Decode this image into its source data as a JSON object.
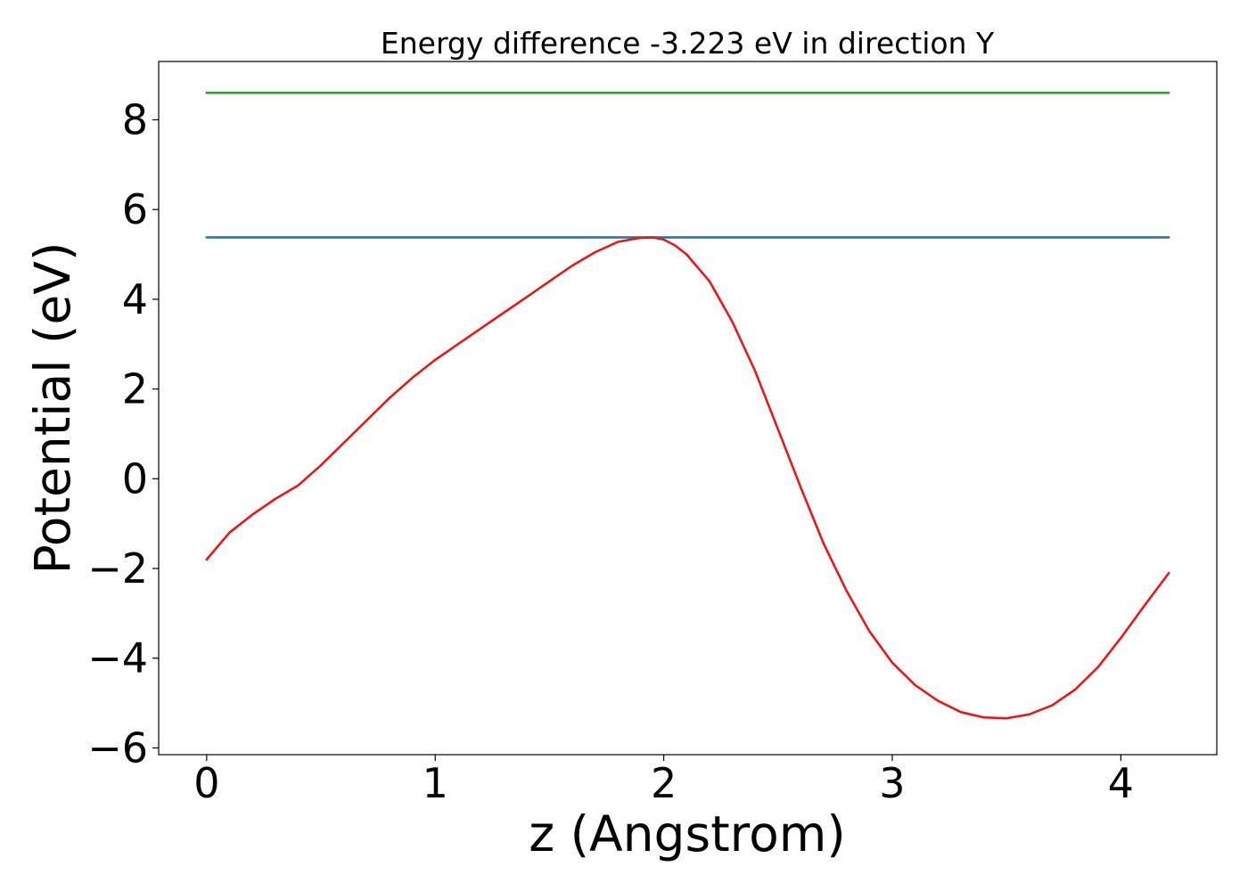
{
  "chart_data": {
    "type": "line",
    "title": "Energy difference -3.223 eV in direction Y",
    "xlabel": "z (Angstrom)",
    "ylabel": "Potential (eV)",
    "xlim": [
      -0.21,
      4.42
    ],
    "ylim": [
      -6.15,
      9.3
    ],
    "xticks": [
      0,
      1,
      2,
      3,
      4
    ],
    "yticks": [
      -6,
      -4,
      -2,
      0,
      2,
      4,
      6,
      8
    ],
    "xtick_labels": [
      "0",
      "1",
      "2",
      "3",
      "4"
    ],
    "ytick_labels": [
      "−6",
      "−4",
      "−2",
      "0",
      "2",
      "4",
      "6",
      "8"
    ],
    "grid": false,
    "series": [
      {
        "color": "#2ca02c",
        "x": [
          0,
          4.21
        ],
        "y": [
          8.6,
          8.6
        ]
      },
      {
        "color": "#1f77b4",
        "x": [
          0,
          4.21
        ],
        "y": [
          5.38,
          5.38
        ]
      },
      {
        "color": "#e31a1c",
        "x": [
          0,
          0.1,
          0.2,
          0.3,
          0.4,
          0.5,
          0.6,
          0.7,
          0.8,
          0.9,
          1.0,
          1.1,
          1.2,
          1.3,
          1.4,
          1.5,
          1.6,
          1.7,
          1.8,
          1.9,
          1.95,
          2.0,
          2.05,
          2.1,
          2.2,
          2.3,
          2.4,
          2.5,
          2.6,
          2.7,
          2.8,
          2.9,
          3.0,
          3.1,
          3.2,
          3.3,
          3.4,
          3.5,
          3.6,
          3.7,
          3.8,
          3.9,
          4.0,
          4.1,
          4.21
        ],
        "y": [
          -1.8,
          -1.2,
          -0.8,
          -0.45,
          -0.15,
          0.3,
          0.8,
          1.3,
          1.8,
          2.25,
          2.65,
          3.0,
          3.35,
          3.7,
          4.05,
          4.4,
          4.75,
          5.05,
          5.28,
          5.37,
          5.38,
          5.33,
          5.2,
          5.0,
          4.4,
          3.5,
          2.4,
          1.1,
          -0.2,
          -1.45,
          -2.5,
          -3.4,
          -4.1,
          -4.6,
          -4.95,
          -5.2,
          -5.32,
          -5.34,
          -5.25,
          -5.05,
          -4.7,
          -4.2,
          -3.55,
          -2.85,
          -2.1
        ]
      }
    ]
  }
}
